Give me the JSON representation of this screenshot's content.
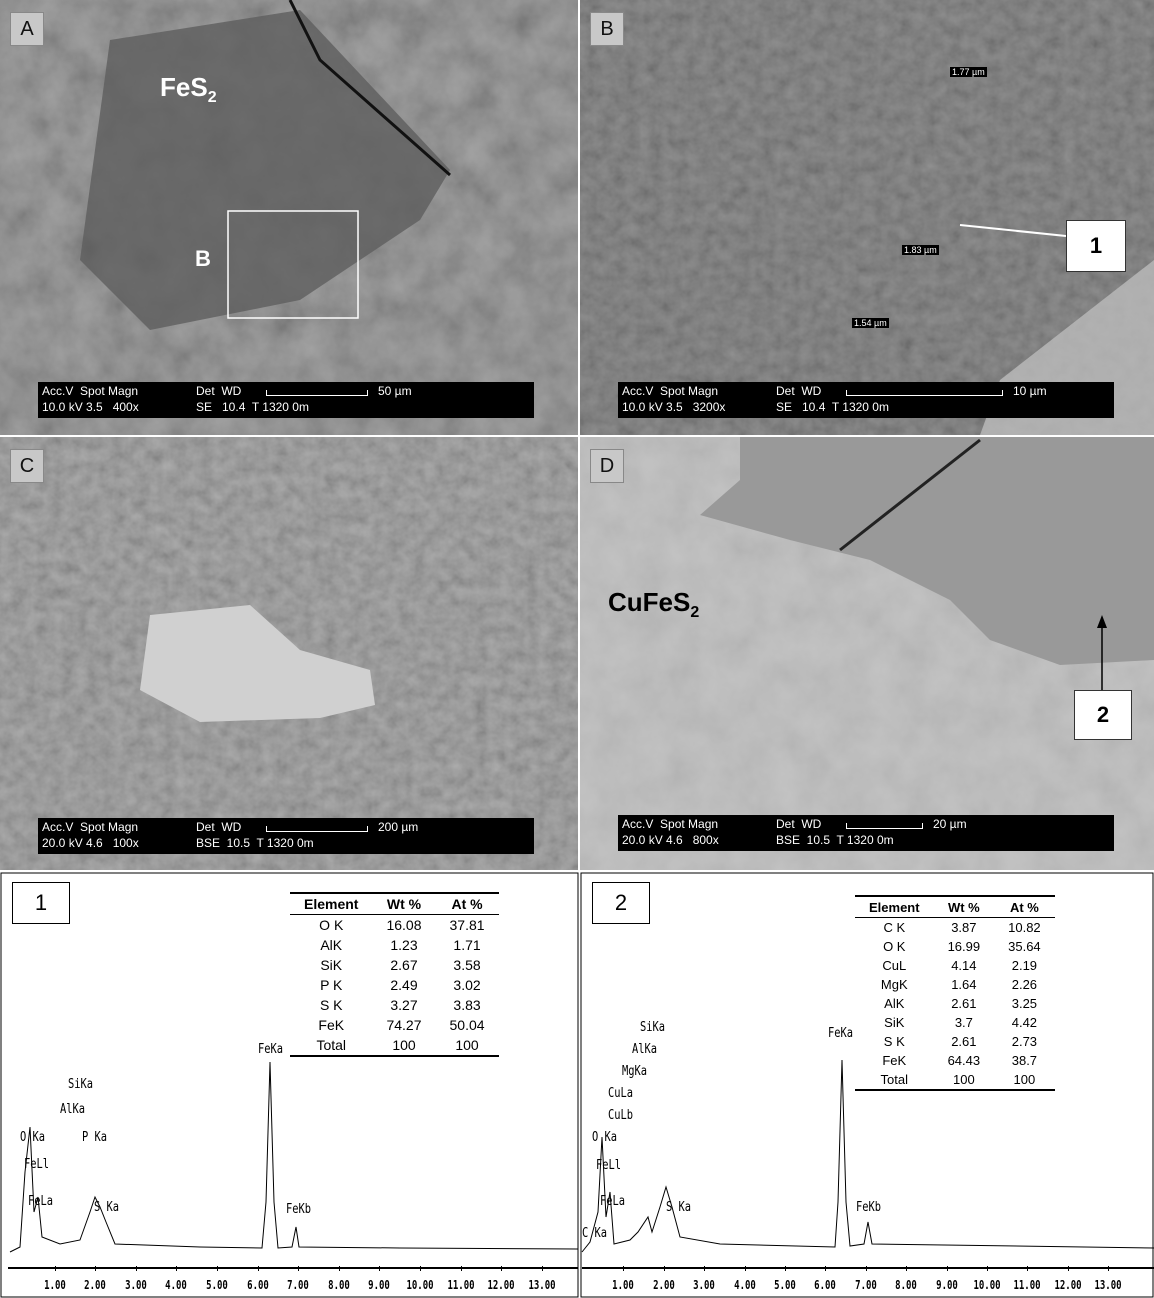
{
  "panels": [
    {
      "label": "A",
      "info": {
        "head": "Acc.V  Spot Magn",
        "det": "Det  WD",
        "scale": "50 µm",
        "line1": "10.0 kV 3.5   400x",
        "line2": "SE   10.4  T 1320 0m"
      },
      "mineral": "FeS",
      "mineral_sub": "2",
      "inset": "B"
    },
    {
      "label": "B",
      "info": {
        "head": "Acc.V  Spot Magn",
        "det": "Det  WD",
        "scale": "10 µm",
        "line1": "10.0 kV 3.5   3200x",
        "line2": "SE   10.4  T 1320 0m"
      },
      "measurements": [
        "1.77 µm",
        "1.83 µm",
        "1.54 µm"
      ],
      "callout": "1"
    },
    {
      "label": "C",
      "info": {
        "head": "Acc.V  Spot Magn",
        "det": "Det  WD",
        "scale": "200 µm",
        "line1": "20.0 kV 4.6   100x",
        "line2": "BSE  10.5  T 1320 0m"
      }
    },
    {
      "label": "D",
      "info": {
        "head": "Acc.V  Spot Magn",
        "det": "Det  WD",
        "scale": "20 µm",
        "line1": "20.0 kV 4.6   800x",
        "line2": "BSE  10.5  T 1320 0m"
      },
      "mineral": "CuFeS",
      "mineral_sub": "2",
      "callout": "2"
    }
  ],
  "spectra": [
    {
      "label": "1",
      "table": {
        "header": [
          "Element",
          "Wt %",
          "At %"
        ],
        "rows": [
          [
            "O K",
            16.08,
            37.81
          ],
          [
            "AlK",
            1.23,
            1.71
          ],
          [
            "SiK",
            2.67,
            3.58
          ],
          [
            "P K",
            2.49,
            3.02
          ],
          [
            "S K",
            3.27,
            3.83
          ],
          [
            "FeK",
            74.27,
            50.04
          ],
          [
            "Total",
            100,
            100
          ]
        ]
      },
      "peaks": [
        "FeKa",
        "SiKa",
        "AlKa",
        "P Ka",
        "O Ka",
        "FeLl",
        "FeLa",
        "S Ka",
        "FeKb"
      ],
      "xticks": [
        {
          "value": 1,
          "label": "1.00"
        },
        {
          "value": 2,
          "label": "2.00"
        },
        {
          "value": 3,
          "label": "3.00"
        },
        {
          "value": 4,
          "label": "4.00"
        },
        {
          "value": 5,
          "label": "5.00"
        },
        {
          "value": 6,
          "label": "6.00"
        },
        {
          "value": 7,
          "label": "7.00"
        },
        {
          "value": 8,
          "label": "8.00"
        },
        {
          "value": 9,
          "label": "9.00"
        },
        {
          "value": 10,
          "label": "10.00"
        },
        {
          "value": 11,
          "label": "11.00"
        },
        {
          "value": 12,
          "label": "12.00"
        },
        {
          "value": 13,
          "label": "13.00"
        }
      ]
    },
    {
      "label": "2",
      "table": {
        "header": [
          "Element",
          "Wt %",
          "At %"
        ],
        "rows": [
          [
            "C K",
            3.87,
            10.82
          ],
          [
            "O K",
            16.99,
            35.64
          ],
          [
            "CuL",
            4.14,
            2.19
          ],
          [
            "MgK",
            1.64,
            2.26
          ],
          [
            "AlK",
            2.61,
            3.25
          ],
          [
            "SiK",
            3.7,
            4.42
          ],
          [
            "S K",
            2.61,
            2.73
          ],
          [
            "FeK",
            64.43,
            38.7
          ],
          [
            "Total",
            100,
            100
          ]
        ]
      },
      "peaks": [
        "SiKa",
        "AlKa",
        "MgKa",
        "CuLa",
        "CuLb",
        "O Ka",
        "FeLl",
        "FeLa",
        "C Ka",
        "S Ka",
        "FeKa",
        "FeKb"
      ],
      "xticks": [
        {
          "value": 1,
          "label": "1.00"
        },
        {
          "value": 2,
          "label": "2.00"
        },
        {
          "value": 3,
          "label": "3.00"
        },
        {
          "value": 4,
          "label": "4.00"
        },
        {
          "value": 5,
          "label": "5.00"
        },
        {
          "value": 6,
          "label": "6.00"
        },
        {
          "value": 7,
          "label": "7.00"
        },
        {
          "value": 8,
          "label": "8.00"
        },
        {
          "value": 9,
          "label": "9.00"
        },
        {
          "value": 10,
          "label": "10.00"
        },
        {
          "value": 11,
          "label": "11.00"
        },
        {
          "value": 12,
          "label": "12.00"
        },
        {
          "value": 13,
          "label": "13.00"
        }
      ]
    }
  ]
}
